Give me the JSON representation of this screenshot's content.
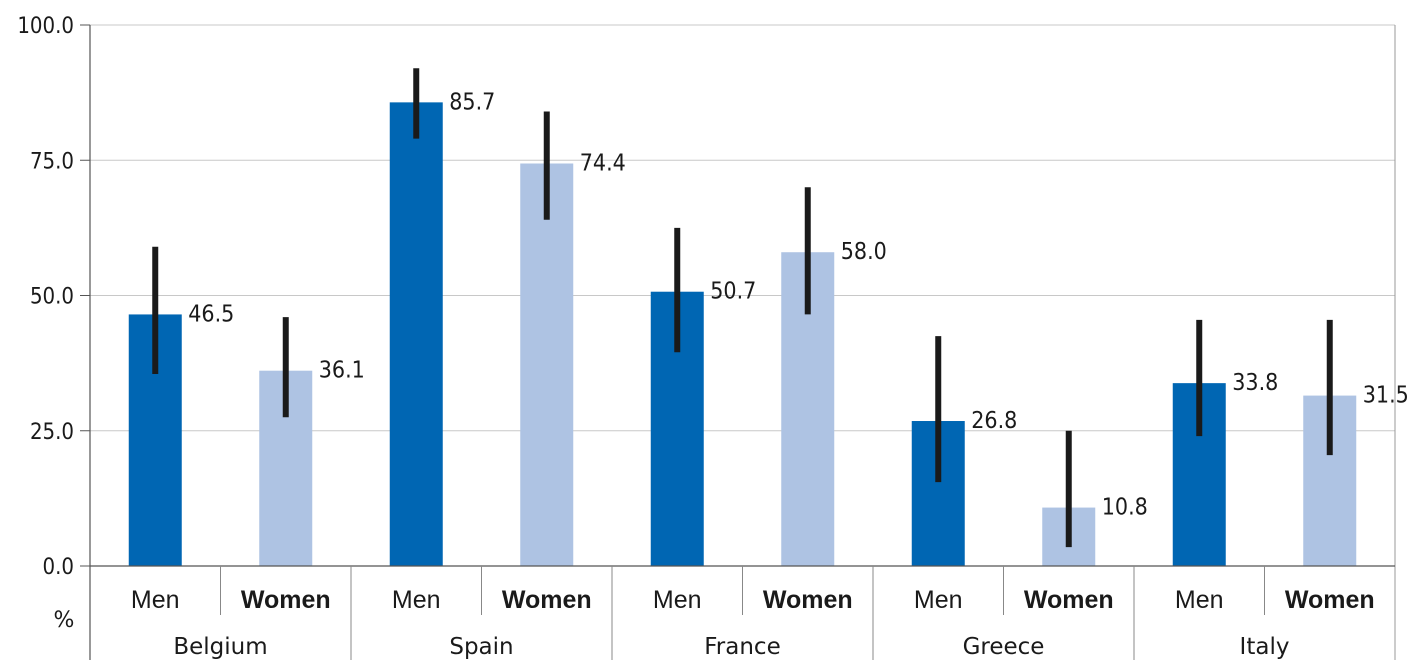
{
  "chart_data": {
    "type": "bar",
    "unit_label": "%",
    "ylim": [
      0,
      100
    ],
    "y_ticks": [
      "0.0",
      "25.0",
      "50.0",
      "75.0",
      "100.0"
    ],
    "grid": true,
    "colors": {
      "Men": "#0066b3",
      "Women": "#aec3e3",
      "error_bar": "#1a1a1a",
      "grid": "#c8c8c8"
    },
    "groups": [
      {
        "country": "Belgium",
        "bars": [
          {
            "sex": "Men",
            "value": 46.5,
            "label": "46.5",
            "err_low": 35.5,
            "err_high": 59
          },
          {
            "sex": "Women",
            "value": 36.1,
            "label": "36.1",
            "err_low": 27.5,
            "err_high": 46
          }
        ]
      },
      {
        "country": "Spain",
        "bars": [
          {
            "sex": "Men",
            "value": 85.7,
            "label": "85.7",
            "err_low": 79,
            "err_high": 92
          },
          {
            "sex": "Women",
            "value": 74.4,
            "label": "74.4",
            "err_low": 64,
            "err_high": 84
          }
        ]
      },
      {
        "country": "France",
        "bars": [
          {
            "sex": "Men",
            "value": 50.7,
            "label": "50.7",
            "err_low": 39.5,
            "err_high": 62.5
          },
          {
            "sex": "Women",
            "value": 58.0,
            "label": "58.0",
            "err_low": 46.5,
            "err_high": 70
          }
        ]
      },
      {
        "country": "Greece",
        "bars": [
          {
            "sex": "Men",
            "value": 26.8,
            "label": "26.8",
            "err_low": 15.5,
            "err_high": 42.5
          },
          {
            "sex": "Women",
            "value": 10.8,
            "label": "10.8",
            "err_low": 3.5,
            "err_high": 25
          }
        ]
      },
      {
        "country": "Italy",
        "bars": [
          {
            "sex": "Men",
            "value": 33.8,
            "label": "33.8",
            "err_low": 24,
            "err_high": 45.5
          },
          {
            "sex": "Women",
            "value": 31.5,
            "label": "31.5",
            "err_low": 20.5,
            "err_high": 45.5
          }
        ]
      }
    ]
  }
}
